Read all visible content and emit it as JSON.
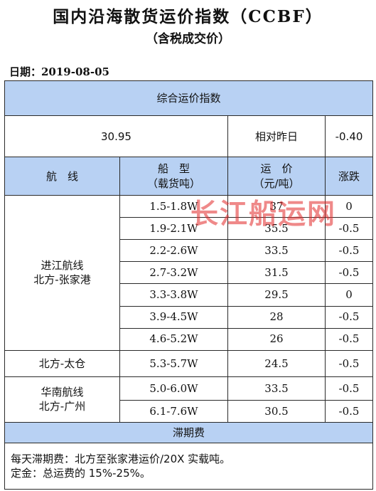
{
  "title": "国内沿海散货运价指数（CCBF）",
  "subtitle": "（含税成交价）",
  "date_label": "日期：2019-08-05",
  "composite": {
    "header": "综合运价指数",
    "value": "30.95",
    "compare_label": "相对昨日",
    "change": "-0.40"
  },
  "columns": {
    "route": "航　线",
    "ship_type": "船　型",
    "ship_type_unit": "（载货吨）",
    "freight": "运　价",
    "freight_unit": "（元/吨）",
    "change": "涨跌"
  },
  "groups": [
    {
      "route_line1": "进江航线",
      "route_line2": "北方-张家港"
    },
    {
      "route_line1": "北方-太仓",
      "route_line2": ""
    },
    {
      "route_line1": "华南航线",
      "route_line2": "北方-广州"
    }
  ],
  "rows": [
    {
      "ship_type": "1.5-1.8W",
      "freight": "37",
      "change": "0"
    },
    {
      "ship_type": "1.9-2.1W",
      "freight": "35.5",
      "change": "-0.5"
    },
    {
      "ship_type": "2.2-2.6W",
      "freight": "33.5",
      "change": "-0.5"
    },
    {
      "ship_type": "2.7-3.2W",
      "freight": "31.5",
      "change": "-0.5"
    },
    {
      "ship_type": "3.3-3.8W",
      "freight": "29.5",
      "change": "0"
    },
    {
      "ship_type": "3.9-4.5W",
      "freight": "28",
      "change": "-0.5"
    },
    {
      "ship_type": "4.6-5.2W",
      "freight": "26",
      "change": "-0.5"
    },
    {
      "ship_type": "5.3-5.7W",
      "freight": "24.5",
      "change": "-0.5"
    },
    {
      "ship_type": "5.0-6.0W",
      "freight": "33.5",
      "change": "-0.5"
    },
    {
      "ship_type": "6.1-7.6W",
      "freight": "30.5",
      "change": "-0.5"
    }
  ],
  "demurrage": {
    "header": "滞期费",
    "note1": "每天滞期费：北方至张家港运价/20X 实载吨。",
    "note2": "定金：总运费的 15%-25%。"
  },
  "watermark": "长江船运网",
  "colors": {
    "header_bg": "#b8d1f3",
    "watermark": "#e22828"
  }
}
